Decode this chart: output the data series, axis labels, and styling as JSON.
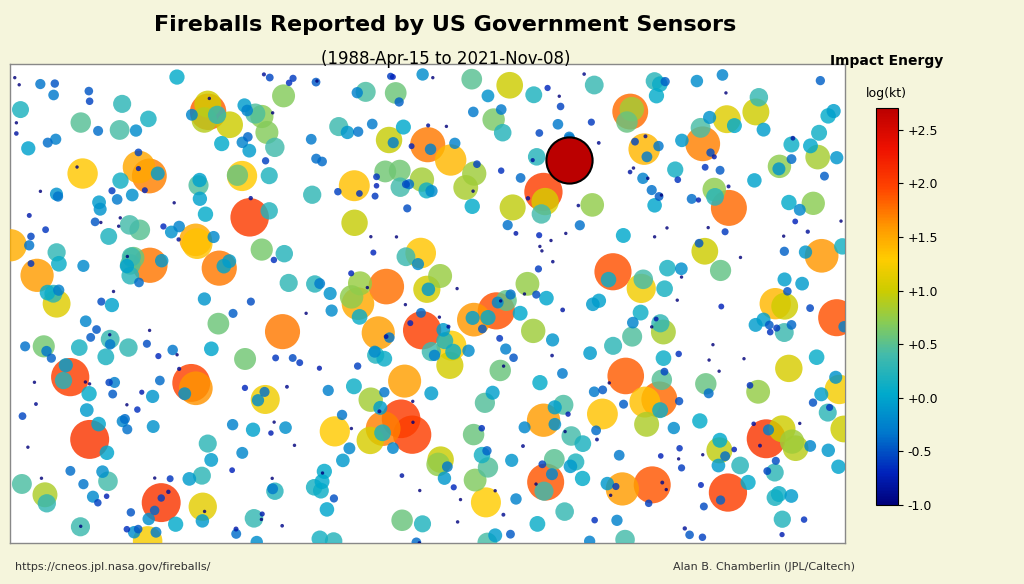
{
  "title": "Fireballs Reported by US Government Sensors",
  "subtitle": "(1988-Apr-15 to 2021-Nov-08)",
  "colorbar_title": "Impact Energy",
  "colorbar_subtitle": "log(kt)",
  "colorbar_ticks": [
    "+2.5",
    "+2.0",
    "+1.5",
    "+1.0",
    "+0.5",
    "+0.0",
    "-0.5",
    "-1.0"
  ],
  "colorbar_values": [
    2.5,
    2.0,
    1.5,
    1.0,
    0.5,
    0.0,
    -0.5,
    -1.0
  ],
  "vmin": -1.0,
  "vmax": 2.7,
  "url_text": "https://cneos.jpl.nasa.gov/fireballs/",
  "credit_text": "Alan B. Chamberlin (JPL/Caltech)",
  "background_color": "#f5f5dc",
  "map_facecolor": "#ffffff",
  "land_color": "#c8c8c8",
  "ocean_color": "#ffffff",
  "border_color": "#aaaaaa",
  "map_border_color": "#888888",
  "seed": 42,
  "num_uniform": 600,
  "num_high": 60,
  "scatter_alpha": 0.82,
  "chelya_lon": 61.1,
  "chelya_lat": 55.0,
  "chelya_energy": 2.7,
  "extra_lons": [
    50.0,
    130.0,
    -100.0,
    -70.0,
    20.0,
    150.0,
    -120.0,
    -40.0,
    80.0,
    -160.0,
    170.0,
    -30.0,
    100.0,
    -80.0,
    10.0
  ],
  "extra_lats": [
    45.0,
    40.0,
    30.0,
    -20.0,
    5.0,
    10.0,
    50.0,
    -30.0,
    20.0,
    10.0,
    25.0,
    10.0,
    -20.0,
    50.0,
    55.0
  ],
  "extra_energies": [
    2.0,
    1.8,
    1.5,
    1.2,
    1.6,
    1.4,
    1.7,
    1.3,
    1.9,
    1.1,
    1.6,
    1.5,
    1.8,
    1.3,
    1.4
  ],
  "cmap_colors": [
    [
      0.0,
      "#00007a"
    ],
    [
      0.08,
      "#0022bb"
    ],
    [
      0.18,
      "#0077cc"
    ],
    [
      0.28,
      "#00aacc"
    ],
    [
      0.38,
      "#44bbaa"
    ],
    [
      0.46,
      "#88cc55"
    ],
    [
      0.54,
      "#cccc00"
    ],
    [
      0.62,
      "#ffcc00"
    ],
    [
      0.7,
      "#ff9900"
    ],
    [
      0.8,
      "#ff4400"
    ],
    [
      0.9,
      "#ee1100"
    ],
    [
      1.0,
      "#bb0000"
    ]
  ],
  "size_min": 6,
  "size_max": 1100,
  "title_fontsize": 16,
  "subtitle_fontsize": 12,
  "footer_fontsize": 8,
  "cb_label_fontsize": 9,
  "cb_title_fontsize": 10
}
